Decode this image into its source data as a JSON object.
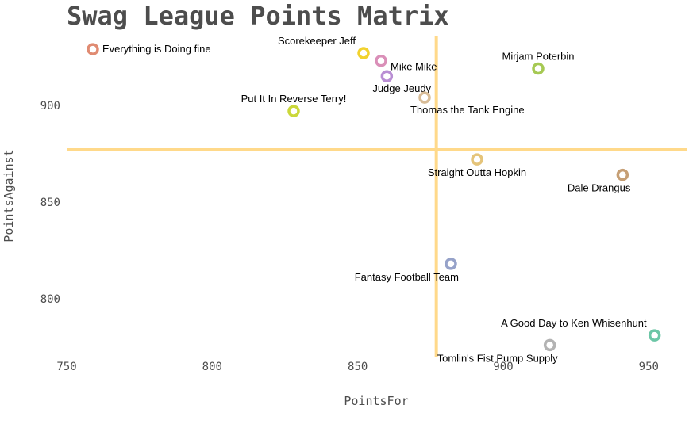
{
  "chart_data": {
    "type": "scatter",
    "title": "Swag League Points Matrix",
    "xlabel": "PointsFor",
    "ylabel": "PointsAgainst",
    "xlim": [
      750,
      963
    ],
    "ylim": [
      770,
      936
    ],
    "xticks": [
      750,
      800,
      850,
      900,
      950
    ],
    "yticks": [
      800,
      850,
      900
    ],
    "grid": false,
    "reference_lines": {
      "x": 877,
      "y": 877,
      "color": "#ffd98a"
    },
    "points": [
      {
        "label": "Everything is  Doing fine",
        "x": 759,
        "y": 929,
        "color": "#e08b72",
        "label_pos": "right"
      },
      {
        "label": "Scorekeeper Jeff",
        "x": 852,
        "y": 927,
        "color": "#f2d22e",
        "label_pos": "above-left"
      },
      {
        "label": "Mike Mike",
        "x": 858,
        "y": 923,
        "color": "#da8fb8",
        "label_pos": "right-below"
      },
      {
        "label": "Judge Jeudy",
        "x": 860,
        "y": 915,
        "color": "#b98ed4",
        "label_pos": "below-right"
      },
      {
        "label": "Thomas the Tank Engine",
        "x": 873,
        "y": 904,
        "color": "#d8bc97",
        "label_pos": "below-right"
      },
      {
        "label": "Put It In  Reverse Terry!",
        "x": 828,
        "y": 897,
        "color": "#cbd83a",
        "label_pos": "above"
      },
      {
        "label": "Mirjam Poterbin",
        "x": 912,
        "y": 919,
        "color": "#a6c953",
        "label_pos": "above"
      },
      {
        "label": "Straight Outta Hopkin",
        "x": 891,
        "y": 872,
        "color": "#e5c47a",
        "label_pos": "below"
      },
      {
        "label": "Dale Drangus",
        "x": 941,
        "y": 864,
        "color": "#c69f75",
        "label_pos": "below-left"
      },
      {
        "label": "Fantasy Football Team",
        "x": 882,
        "y": 818,
        "color": "#96a2c9",
        "label_pos": "below-left"
      },
      {
        "label": "A Good Day to Ken Whisenhunt",
        "x": 952,
        "y": 781,
        "color": "#6cc6a6",
        "label_pos": "above-left"
      },
      {
        "label": "Tomlin's Fist Pump Supply",
        "x": 916,
        "y": 776,
        "color": "#b3b3b3",
        "label_pos": "below-left"
      }
    ]
  }
}
